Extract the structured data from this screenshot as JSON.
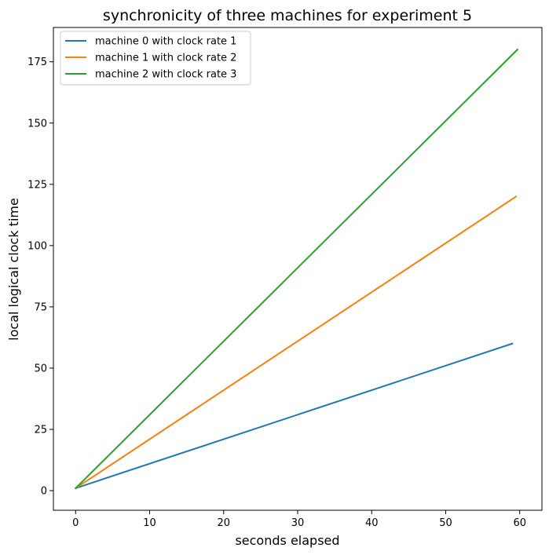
{
  "chart_data": {
    "type": "line",
    "title": "synchronicity of three machines for experiment 5",
    "xlabel": "seconds elapsed",
    "ylabel": "local logical clock time",
    "xlim": [
      -3.0,
      63.0
    ],
    "ylim": [
      -8.0,
      189.0
    ],
    "xticks": [
      0,
      10,
      20,
      30,
      40,
      50,
      60
    ],
    "yticks": [
      0,
      25,
      50,
      75,
      100,
      125,
      150,
      175
    ],
    "grid": false,
    "legend_position": "top-left",
    "series": [
      {
        "name": "machine 0 with clock rate 1",
        "color": "#1f77b4",
        "x": [
          0,
          59
        ],
        "y": [
          1,
          60
        ]
      },
      {
        "name": "machine 1 with clock rate 2",
        "color": "#ff7f0e",
        "x": [
          0,
          59.5
        ],
        "y": [
          1,
          120
        ]
      },
      {
        "name": "machine 2 with clock rate 3",
        "color": "#2ca02c",
        "x": [
          0,
          59.7
        ],
        "y": [
          1,
          180
        ]
      }
    ]
  }
}
